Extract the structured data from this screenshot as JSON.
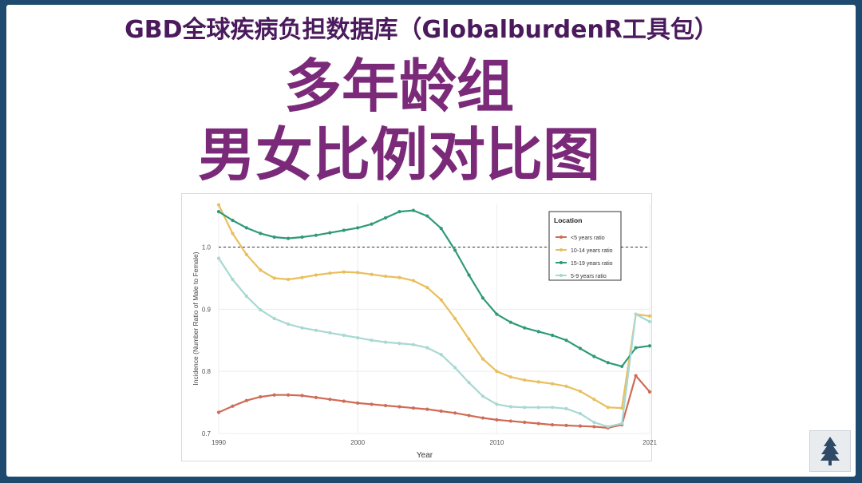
{
  "slide": {
    "header": "GBD全球疾病负担数据库（GlobalburdenR工具包）",
    "title_line1": "多年龄组",
    "title_line2": "男女比例对比图"
  },
  "chart_data": {
    "type": "line",
    "xlabel": "Year",
    "ylabel": "Incidence (Number Ratio of Male to Female)",
    "xlim": [
      1990,
      2021
    ],
    "ylim": [
      0.7,
      1.07
    ],
    "xticks": [
      1990,
      2000,
      2010,
      2021
    ],
    "yticks": [
      0.7,
      0.8,
      0.9,
      1.0
    ],
    "ytick_labels": [
      "0.7",
      "0.8",
      "0.9",
      "1.0"
    ],
    "reference_line": 1.0,
    "grid": true,
    "legend": {
      "title": "Location",
      "placement": "top-right"
    },
    "x": [
      1990,
      1991,
      1992,
      1993,
      1994,
      1995,
      1996,
      1997,
      1998,
      1999,
      2000,
      2001,
      2002,
      2003,
      2004,
      2005,
      2006,
      2007,
      2008,
      2009,
      2010,
      2011,
      2012,
      2013,
      2014,
      2015,
      2016,
      2017,
      2018,
      2019,
      2020,
      2021
    ],
    "series": [
      {
        "name": "<5 years ratio",
        "color": "#cf6b56",
        "values": [
          0.734,
          0.744,
          0.753,
          0.759,
          0.762,
          0.762,
          0.761,
          0.758,
          0.755,
          0.752,
          0.749,
          0.747,
          0.745,
          0.743,
          0.741,
          0.739,
          0.736,
          0.733,
          0.729,
          0.725,
          0.722,
          0.72,
          0.718,
          0.716,
          0.714,
          0.713,
          0.712,
          0.711,
          0.709,
          0.714,
          0.793,
          0.767
        ]
      },
      {
        "name": "10-14 years ratio",
        "color": "#e8bf5c",
        "values": [
          1.068,
          1.022,
          0.988,
          0.963,
          0.95,
          0.948,
          0.951,
          0.955,
          0.958,
          0.96,
          0.959,
          0.956,
          0.953,
          0.951,
          0.946,
          0.935,
          0.915,
          0.885,
          0.852,
          0.82,
          0.8,
          0.791,
          0.786,
          0.783,
          0.78,
          0.776,
          0.768,
          0.755,
          0.742,
          0.741,
          0.892,
          0.889
        ]
      },
      {
        "name": "15-19 years ratio",
        "color": "#2e9a7a",
        "values": [
          1.057,
          1.043,
          1.031,
          1.022,
          1.016,
          1.014,
          1.016,
          1.019,
          1.023,
          1.027,
          1.031,
          1.037,
          1.047,
          1.057,
          1.059,
          1.05,
          1.03,
          0.995,
          0.955,
          0.918,
          0.892,
          0.879,
          0.87,
          0.864,
          0.858,
          0.85,
          0.837,
          0.824,
          0.814,
          0.808,
          0.838,
          0.841
        ]
      },
      {
        "name": "5-9 years ratio",
        "color": "#a8d8d2",
        "values": [
          0.982,
          0.948,
          0.921,
          0.899,
          0.885,
          0.876,
          0.87,
          0.866,
          0.862,
          0.858,
          0.854,
          0.85,
          0.847,
          0.845,
          0.843,
          0.838,
          0.827,
          0.806,
          0.782,
          0.76,
          0.747,
          0.743,
          0.742,
          0.742,
          0.742,
          0.74,
          0.732,
          0.718,
          0.711,
          0.716,
          0.892,
          0.88
        ]
      }
    ]
  },
  "logo": {
    "icon": "tree-logo-icon"
  }
}
